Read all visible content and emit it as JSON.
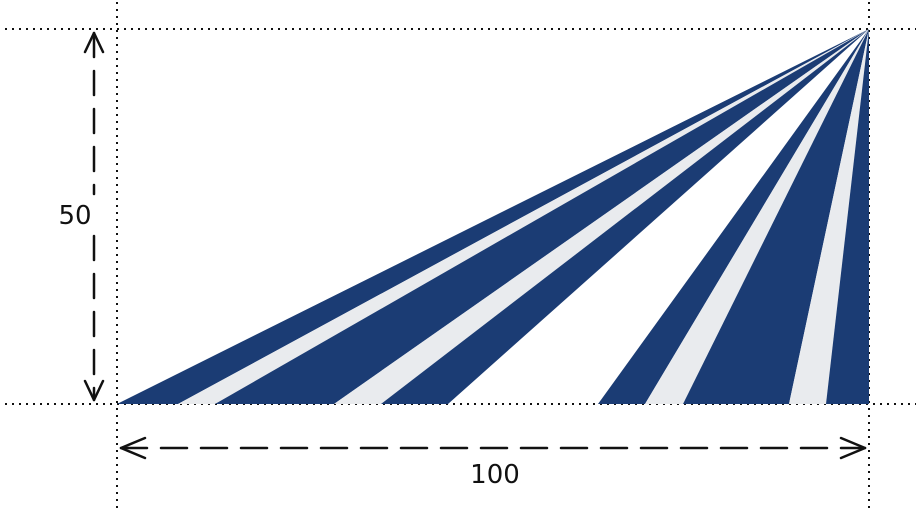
{
  "diagram": {
    "height_label": "50",
    "width_label": "100",
    "colors": {
      "stripe_dark": "#1b3c74",
      "stripe_light": "#e9ebee",
      "background": "#ffffff",
      "line": "#111111"
    }
  }
}
